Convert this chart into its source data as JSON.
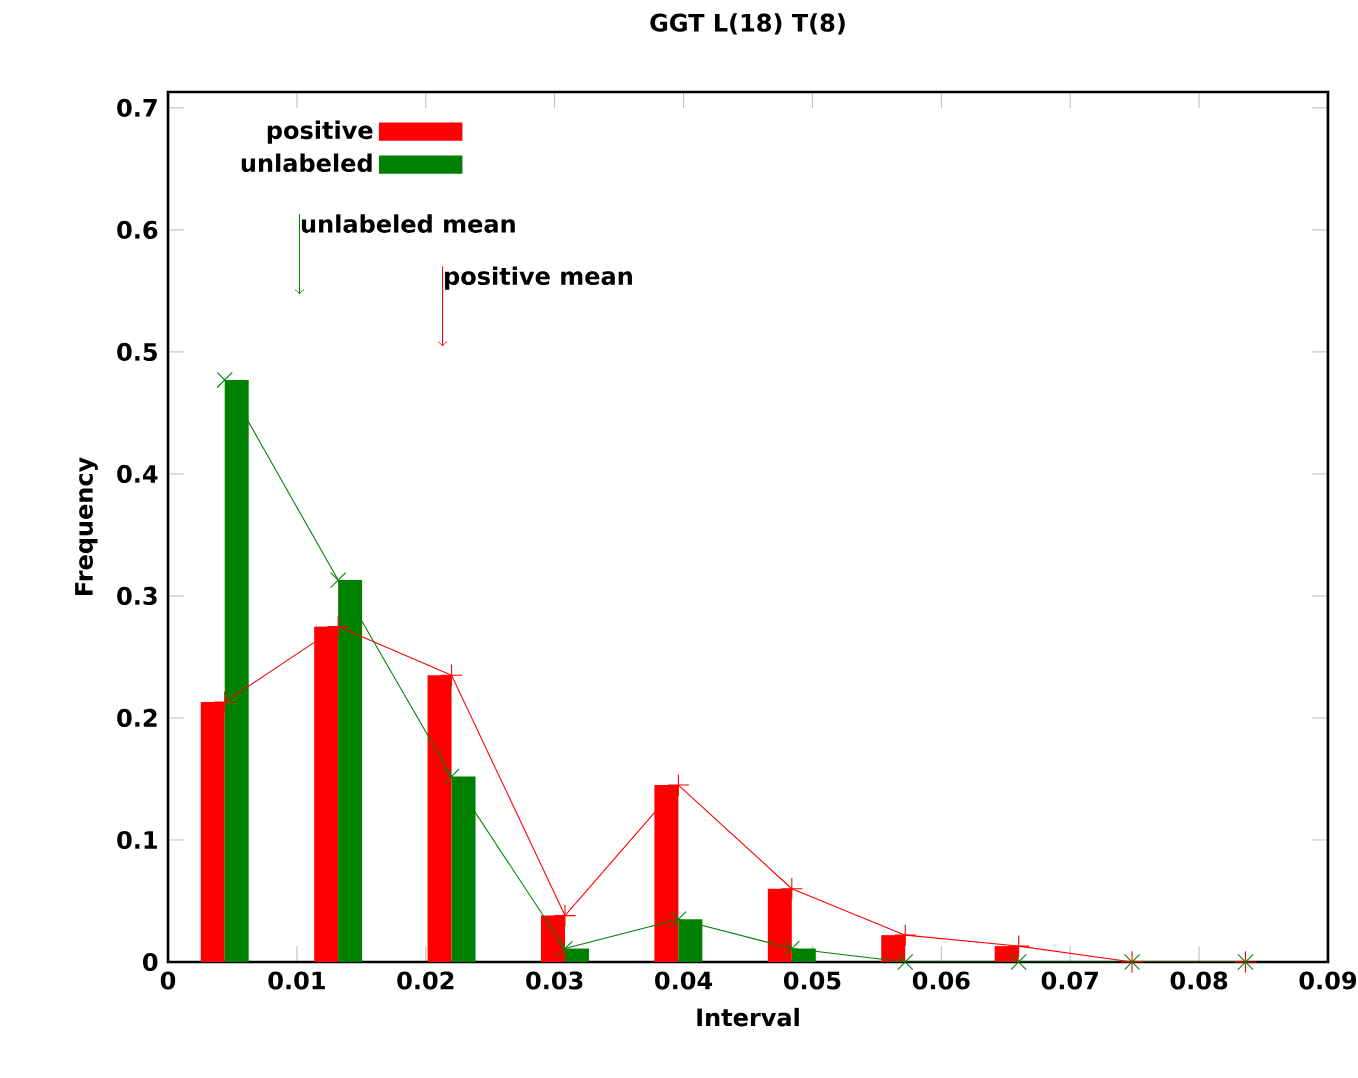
{
  "chart_data": {
    "type": "bar",
    "title": "GGT L(18) T(8)",
    "xlabel": "Interval",
    "ylabel": "Frequency",
    "x": [
      0.0044,
      0.0132,
      0.022,
      0.0308,
      0.0396,
      0.0484,
      0.0572,
      0.066,
      0.0748,
      0.0836
    ],
    "series": [
      {
        "name": "positive",
        "color": "#ff0000",
        "values": [
          0.213,
          0.275,
          0.235,
          0.038,
          0.145,
          0.06,
          0.022,
          0.013,
          0,
          0
        ]
      },
      {
        "name": "unlabeled",
        "color": "#008000",
        "values": [
          0.477,
          0.313,
          0.152,
          0.011,
          0.035,
          0.011,
          0,
          0,
          0,
          0
        ]
      },
      {
        "type": "line",
        "marker": "plus",
        "color": "#ff0000",
        "values": [
          0.213,
          0.275,
          0.235,
          0.038,
          0.145,
          0.06,
          0.022,
          0.013,
          0,
          0
        ]
      },
      {
        "type": "line",
        "marker": "cross",
        "color": "#008000",
        "values": [
          0.477,
          0.313,
          0.152,
          0.011,
          0.035,
          0.011,
          0,
          0,
          0,
          0
        ]
      }
    ],
    "ref_lines": [
      {
        "axis": "x",
        "value": 0.0102,
        "label": "unlabeled mean",
        "color": "#008000"
      },
      {
        "axis": "x",
        "value": 0.0213,
        "label": "positive mean",
        "color": "#ff0000"
      }
    ],
    "xlim": [
      0,
      0.09
    ],
    "xticks": [
      0,
      0.01,
      0.02,
      0.03,
      0.04,
      0.05,
      0.06,
      0.07,
      0.08,
      0.09
    ],
    "ylim": [
      0,
      0.713
    ],
    "yticks": [
      0,
      0.1,
      0.2,
      0.3,
      0.4,
      0.5,
      0.6,
      0.7
    ],
    "grid": false,
    "legend": "top left",
    "line_style": "solid"
  }
}
